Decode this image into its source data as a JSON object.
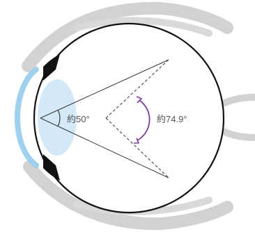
{
  "labels": {
    "lens_angle": "約50°",
    "retina_angle": "約74.9°"
  },
  "colors": {
    "outline": "#111111",
    "eyelid": "#d2d2d2",
    "cornea": "#9fd0ee",
    "lens": "#cfe7f7",
    "iris": "#111111",
    "rays": "#333333",
    "arc_lens": "#333333",
    "arc_retina": "#7b3ea6",
    "label_text": "#555555"
  }
}
